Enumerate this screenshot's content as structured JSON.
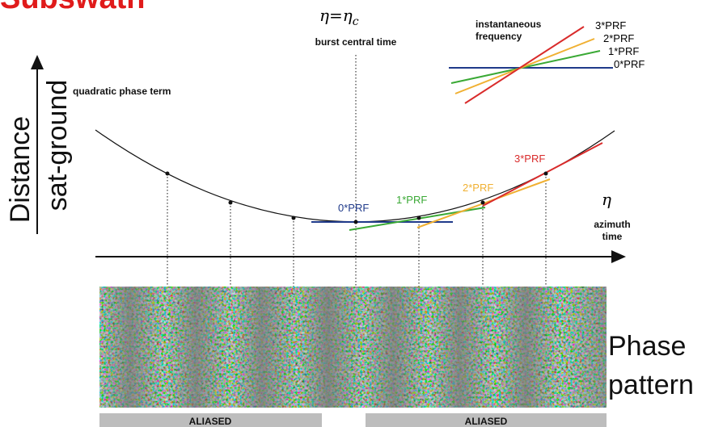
{
  "title": "Subswath",
  "burst": {
    "symbol": "η=η",
    "subscript": "c",
    "label": "burst central time"
  },
  "inset": {
    "title_line1": "instantaneous",
    "title_line2": "frequency",
    "labels": [
      "3*PRF",
      "2*PRF",
      "1*PRF",
      "0*PRF"
    ]
  },
  "curve": {
    "label": "quadratic phase term",
    "tangents": [
      "0*PRF",
      "1*PRF",
      "2*PRF",
      "3*PRF"
    ]
  },
  "y_axis": {
    "line1": "Distance",
    "line2": "sat-ground"
  },
  "x_axis": {
    "symbol": "η",
    "line1": "azimuth",
    "line2": "time"
  },
  "phase": {
    "line1": "Phase",
    "line2": "pattern"
  },
  "bars": [
    "ALIASED",
    "ALIASED"
  ]
}
